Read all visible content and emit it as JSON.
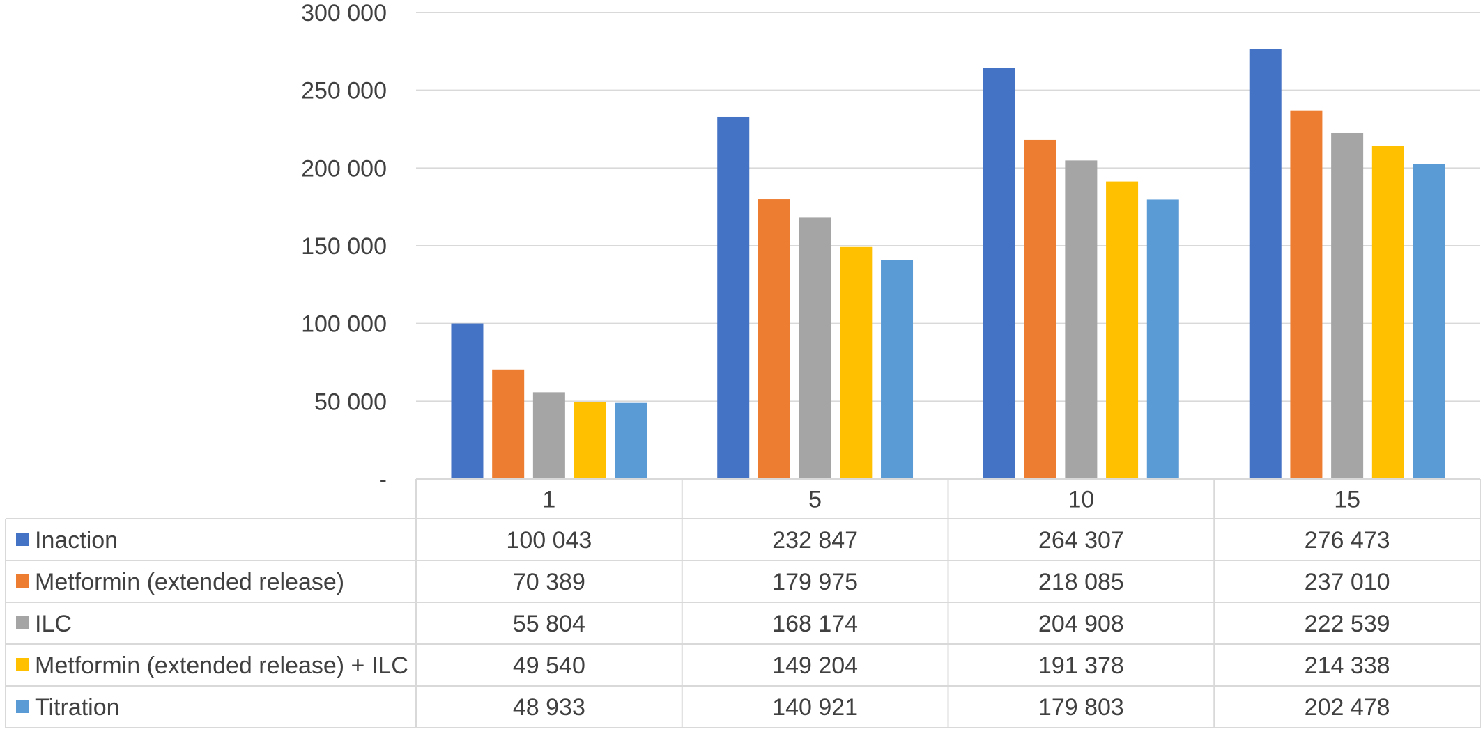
{
  "chart_data": {
    "type": "bar",
    "categories": [
      "1",
      "5",
      "10",
      "15"
    ],
    "series": [
      {
        "name": "Inaction",
        "color": "#4472C4",
        "values": [
          100043,
          232847,
          264307,
          276473
        ],
        "labels": [
          "100 043",
          "232 847",
          "264 307",
          "276 473"
        ]
      },
      {
        "name": "Metformin (extended release)",
        "color": "#ED7D31",
        "values": [
          70389,
          179975,
          218085,
          237010
        ],
        "labels": [
          "70 389",
          "179 975",
          "218 085",
          "237 010"
        ]
      },
      {
        "name": "ILC",
        "color": "#A5A5A5",
        "values": [
          55804,
          168174,
          204908,
          222539
        ],
        "labels": [
          "55 804",
          "168 174",
          "204 908",
          "222 539"
        ]
      },
      {
        "name": "Metformin (extended release)  + ILC",
        "color": "#FFC000",
        "values": [
          49540,
          149204,
          191378,
          214338
        ],
        "labels": [
          "49 540",
          "149 204",
          "191 378",
          "214 338"
        ]
      },
      {
        "name": "Titration",
        "color": "#5B9BD5",
        "values": [
          48933,
          140921,
          179803,
          202478
        ],
        "labels": [
          "48 933",
          "140 921",
          "179 803",
          "202 478"
        ]
      }
    ],
    "ylim": [
      0,
      300000
    ],
    "yticks": [
      0,
      50000,
      100000,
      150000,
      200000,
      250000,
      300000
    ],
    "ytick_labels": [
      "-",
      "50 000",
      "100 000",
      "150 000",
      "200 000",
      "250 000",
      "300 000"
    ],
    "grid": true,
    "legend": "data-table",
    "gridline_color": "#D9D9D9"
  }
}
